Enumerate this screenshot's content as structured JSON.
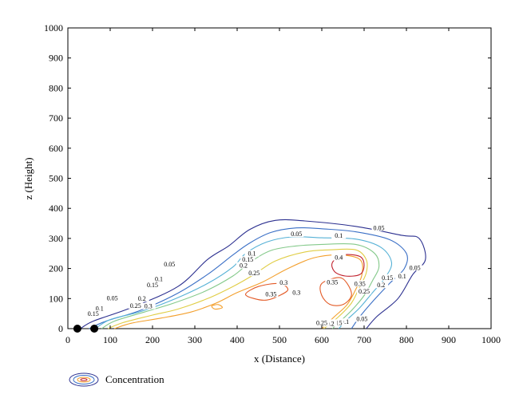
{
  "chart_data": {
    "type": "contour",
    "xlabel": "x (Distance)",
    "ylabel": "z (Height)",
    "xlim": [
      0,
      1000
    ],
    "ylim": [
      0,
      1000
    ],
    "xticks": [
      "0",
      "100",
      "200",
      "300",
      "400",
      "500",
      "600",
      "700",
      "800",
      "900",
      "1000"
    ],
    "yticks": [
      "0",
      "100",
      "200",
      "300",
      "400",
      "500",
      "600",
      "700",
      "800",
      "900",
      "1000"
    ],
    "legend": {
      "label": "Concentration",
      "position": "bottom-left"
    },
    "sources": [
      {
        "x": 30,
        "z": 0
      },
      {
        "x": 70,
        "z": 0
      }
    ],
    "contours": [
      {
        "level": 0.05,
        "color": "#2b2f8f",
        "points": [
          [
            30,
            0
          ],
          [
            60,
            25
          ],
          [
            150,
            70
          ],
          [
            260,
            140
          ],
          [
            330,
            230
          ],
          [
            380,
            275
          ],
          [
            430,
            330
          ],
          [
            490,
            360
          ],
          [
            560,
            358
          ],
          [
            680,
            340
          ],
          [
            790,
            310
          ],
          [
            830,
            300
          ],
          [
            845,
            230
          ],
          [
            815,
            180
          ],
          [
            780,
            100
          ],
          [
            730,
            40
          ],
          [
            705,
            0
          ]
        ],
        "labels": [
          {
            "x": 240,
            "y": 210,
            "text": "0.05"
          },
          {
            "x": 105,
            "y": 97,
            "text": "0.05"
          },
          {
            "x": 540,
            "y": 310,
            "text": "0.05"
          },
          {
            "x": 735,
            "y": 330,
            "text": "0.05"
          },
          {
            "x": 820,
            "y": 198,
            "text": "0.05"
          },
          {
            "x": 695,
            "y": 28,
            "text": "0.05"
          }
        ]
      },
      {
        "level": 0.1,
        "color": "#3a6fc6",
        "points": [
          [
            50,
            0
          ],
          [
            90,
            25
          ],
          [
            170,
            60
          ],
          [
            260,
            118
          ],
          [
            330,
            180
          ],
          [
            390,
            245
          ],
          [
            430,
            285
          ],
          [
            480,
            320
          ],
          [
            540,
            335
          ],
          [
            600,
            332
          ],
          [
            680,
            322
          ],
          [
            760,
            296
          ],
          [
            800,
            250
          ],
          [
            795,
            200
          ],
          [
            760,
            150
          ],
          [
            720,
            90
          ],
          [
            690,
            40
          ],
          [
            670,
            0
          ]
        ],
        "labels": [
          {
            "x": 215,
            "y": 160,
            "text": "0.1"
          },
          {
            "x": 75,
            "y": 62,
            "text": "0.1"
          },
          {
            "x": 435,
            "y": 245,
            "text": "0.1"
          },
          {
            "x": 640,
            "y": 305,
            "text": "0.1"
          },
          {
            "x": 790,
            "y": 170,
            "text": "0.1"
          },
          {
            "x": 655,
            "y": 18,
            "text": "0.1"
          }
        ]
      },
      {
        "level": 0.15,
        "color": "#55b1d6",
        "points": [
          [
            65,
            0
          ],
          [
            100,
            30
          ],
          [
            175,
            58
          ],
          [
            255,
            100
          ],
          [
            330,
            150
          ],
          [
            390,
            205
          ],
          [
            420,
            250
          ],
          [
            470,
            288
          ],
          [
            530,
            305
          ],
          [
            600,
            302
          ],
          [
            680,
            298
          ],
          [
            740,
            270
          ],
          [
            765,
            220
          ],
          [
            750,
            170
          ],
          [
            720,
            120
          ],
          [
            690,
            70
          ],
          [
            660,
            30
          ],
          [
            640,
            0
          ]
        ],
        "labels": [
          {
            "x": 200,
            "y": 140,
            "text": "0.15"
          },
          {
            "x": 60,
            "y": 45,
            "text": "0.15"
          },
          {
            "x": 425,
            "y": 225,
            "text": "0.15"
          },
          {
            "x": 755,
            "y": 165,
            "text": "0.15"
          },
          {
            "x": 635,
            "y": 15,
            "text": "0.15"
          }
        ]
      },
      {
        "level": 0.2,
        "color": "#84c98a",
        "points": [
          [
            80,
            0
          ],
          [
            110,
            25
          ],
          [
            180,
            55
          ],
          [
            250,
            85
          ],
          [
            325,
            125
          ],
          [
            390,
            175
          ],
          [
            430,
            220
          ],
          [
            480,
            260
          ],
          [
            540,
            275
          ],
          [
            600,
            280
          ],
          [
            680,
            280
          ],
          [
            725,
            250
          ],
          [
            735,
            205
          ],
          [
            720,
            160
          ],
          [
            700,
            110
          ],
          [
            670,
            60
          ],
          [
            640,
            20
          ],
          [
            625,
            0
          ]
        ],
        "labels": [
          {
            "x": 175,
            "y": 95,
            "text": "0.2"
          },
          {
            "x": 415,
            "y": 205,
            "text": "0.2"
          },
          {
            "x": 740,
            "y": 140,
            "text": "0.2"
          },
          {
            "x": 620,
            "y": 12,
            "text": "0.2"
          }
        ]
      },
      {
        "level": 0.25,
        "color": "#e0cd45",
        "points": [
          [
            95,
            0
          ],
          [
            130,
            20
          ],
          [
            200,
            45
          ],
          [
            260,
            65
          ],
          [
            330,
            100
          ],
          [
            390,
            140
          ],
          [
            440,
            180
          ],
          [
            490,
            225
          ],
          [
            560,
            255
          ],
          [
            620,
            262
          ],
          [
            680,
            262
          ],
          [
            705,
            230
          ],
          [
            705,
            185
          ],
          [
            690,
            140
          ],
          [
            670,
            85
          ],
          [
            640,
            40
          ],
          [
            605,
            0
          ]
        ],
        "labels": [
          {
            "x": 160,
            "y": 72,
            "text": "0.25"
          },
          {
            "x": 440,
            "y": 180,
            "text": "0.25"
          },
          {
            "x": 700,
            "y": 120,
            "text": "0.25"
          },
          {
            "x": 600,
            "y": 15,
            "text": "0.25"
          }
        ]
      },
      {
        "level": 0.3,
        "color": "#f39f2c",
        "points": [
          [
            110,
            0
          ],
          [
            150,
            18
          ],
          [
            220,
            35
          ],
          [
            290,
            55
          ],
          [
            350,
            85
          ],
          [
            400,
            120
          ],
          [
            460,
            155
          ],
          [
            520,
            200
          ],
          [
            580,
            235
          ],
          [
            640,
            245
          ],
          [
            690,
            230
          ],
          [
            695,
            180
          ],
          [
            680,
            130
          ],
          [
            660,
            80
          ],
          [
            630,
            40
          ],
          [
            600,
            0
          ]
        ],
        "labels": [
          {
            "x": 190,
            "y": 70,
            "text": "0.3"
          },
          {
            "x": 510,
            "y": 148,
            "text": "0.3"
          },
          {
            "x": 540,
            "y": 115,
            "text": "0.3"
          }
        ]
      },
      {
        "level": 0.35,
        "color": "#e35a26",
        "points": [
          [
            600,
            150
          ],
          [
            640,
            170
          ],
          [
            660,
            150
          ],
          [
            670,
            110
          ],
          [
            650,
            80
          ],
          [
            620,
            80
          ],
          [
            600,
            110
          ]
        ],
        "labels": [
          {
            "x": 625,
            "y": 150,
            "text": "0.35"
          },
          {
            "x": 480,
            "y": 110,
            "text": "0.35"
          },
          {
            "x": 690,
            "y": 145,
            "text": "0.35"
          }
        ]
      },
      {
        "level": 0.35,
        "color": "#e35a26",
        "points": [
          [
            420,
            115
          ],
          [
            450,
            140
          ],
          [
            500,
            150
          ],
          [
            520,
            130
          ],
          [
            500,
            110
          ],
          [
            470,
            95
          ],
          [
            440,
            100
          ]
        ],
        "labels": []
      },
      {
        "level": 0.4,
        "color": "#c0202c",
        "points": [
          [
            625,
            220
          ],
          [
            650,
            245
          ],
          [
            690,
            240
          ],
          [
            700,
            210
          ],
          [
            690,
            180
          ],
          [
            655,
            175
          ],
          [
            630,
            190
          ]
        ],
        "labels": [
          {
            "x": 640,
            "y": 232,
            "text": "0.4"
          }
        ]
      },
      {
        "level": 0.3,
        "color": "#f39f2c",
        "points": [
          [
            340,
            75
          ],
          [
            355,
            80
          ],
          [
            365,
            70
          ],
          [
            348,
            65
          ]
        ],
        "labels": []
      }
    ]
  }
}
